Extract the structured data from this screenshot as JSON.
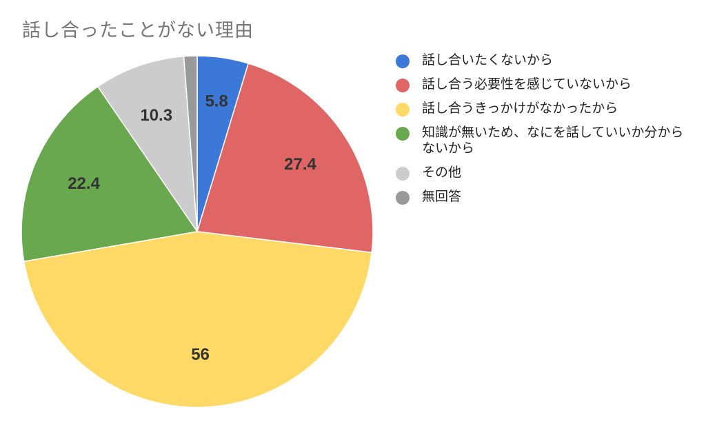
{
  "chart_data": {
    "type": "pie",
    "title": "話し合ったことがない理由",
    "legend_position": "right",
    "slices": [
      {
        "label": "話し合いたくないから",
        "value": 5.8,
        "color": "#3c78d8",
        "data_label": "5.8"
      },
      {
        "label": "話し合う必要性を感じていないから",
        "value": 27.4,
        "color": "#e06666",
        "data_label": "27.4"
      },
      {
        "label": "話し合うきっかけがなかったから",
        "value": 56,
        "color": "#ffd966",
        "data_label": "56"
      },
      {
        "label": "知識が無いため、なにを話していいか分からないから",
        "value": 22.4,
        "color": "#6aa84f",
        "data_label": "22.4"
      },
      {
        "label": "その他",
        "value": 10.3,
        "color": "#cccccc",
        "data_label": "10.3"
      },
      {
        "label": "無回答",
        "value": 1.5,
        "color": "#999999",
        "data_label": ""
      }
    ]
  }
}
